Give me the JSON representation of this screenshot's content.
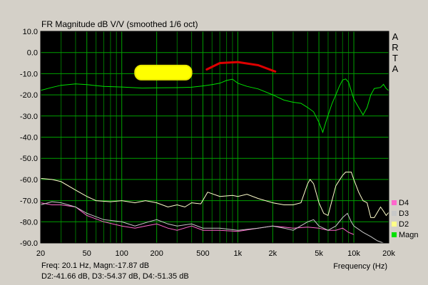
{
  "chart_data": {
    "type": "line",
    "title": "FR Magnitude dB V/V (smoothed 1/6 oct)",
    "xlabel": "Frequency (Hz)",
    "ylabel": "",
    "xscale": "log",
    "xlim": [
      20,
      20000
    ],
    "ylim": [
      -90,
      10
    ],
    "x_ticks": [
      {
        "value": 20,
        "label": "20"
      },
      {
        "value": 50,
        "label": "50"
      },
      {
        "value": 100,
        "label": "100"
      },
      {
        "value": 200,
        "label": "200"
      },
      {
        "value": 500,
        "label": "500"
      },
      {
        "value": 1000,
        "label": "1k"
      },
      {
        "value": 2000,
        "label": "2k"
      },
      {
        "value": 5000,
        "label": "5k"
      },
      {
        "value": 10000,
        "label": "10k"
      },
      {
        "value": 20000,
        "label": "20k"
      }
    ],
    "y_ticks": [
      {
        "value": 10,
        "label": "10.0"
      },
      {
        "value": 0,
        "label": "0.0"
      },
      {
        "value": -10,
        "label": "-10.0"
      },
      {
        "value": -20,
        "label": "-20.0"
      },
      {
        "value": -30,
        "label": "-30.0"
      },
      {
        "value": -40,
        "label": "-40.0"
      },
      {
        "value": -50,
        "label": "-50.0"
      },
      {
        "value": -60,
        "label": "-60.0"
      },
      {
        "value": -70,
        "label": "-70.0"
      },
      {
        "value": -80,
        "label": "-80.0"
      },
      {
        "value": -90,
        "label": "-90.0"
      }
    ],
    "grid": true,
    "legend_position": "bottom-right",
    "series": [
      {
        "name": "Magn",
        "color": "#00e000",
        "points": [
          [
            20,
            -17.9
          ],
          [
            25,
            -16.5
          ],
          [
            30,
            -15.5
          ],
          [
            40,
            -14.8
          ],
          [
            50,
            -15.2
          ],
          [
            70,
            -16
          ],
          [
            100,
            -16.3
          ],
          [
            150,
            -16.8
          ],
          [
            200,
            -16.7
          ],
          [
            300,
            -16.6
          ],
          [
            400,
            -16.4
          ],
          [
            500,
            -15.8
          ],
          [
            600,
            -15.2
          ],
          [
            700,
            -14.5
          ],
          [
            800,
            -13.2
          ],
          [
            900,
            -12.6
          ],
          [
            1000,
            -14.5
          ],
          [
            1200,
            -16
          ],
          [
            1500,
            -17.2
          ],
          [
            2000,
            -20
          ],
          [
            2500,
            -22.5
          ],
          [
            3000,
            -23.5
          ],
          [
            3500,
            -24
          ],
          [
            4000,
            -26
          ],
          [
            4500,
            -28
          ],
          [
            5000,
            -33
          ],
          [
            5400,
            -37.7
          ],
          [
            5800,
            -32
          ],
          [
            6500,
            -24
          ],
          [
            7000,
            -20
          ],
          [
            7500,
            -16
          ],
          [
            8000,
            -13
          ],
          [
            8500,
            -12.5
          ],
          [
            9000,
            -14
          ],
          [
            10000,
            -22
          ],
          [
            11000,
            -26
          ],
          [
            12000,
            -29.5
          ],
          [
            13000,
            -26
          ],
          [
            14000,
            -20
          ],
          [
            15000,
            -17
          ],
          [
            17000,
            -16.5
          ],
          [
            18000,
            -15
          ],
          [
            19000,
            -17
          ],
          [
            20000,
            -18
          ]
        ]
      },
      {
        "name": "D2",
        "color": "#ffffcc",
        "points": [
          [
            20,
            -59.5
          ],
          [
            25,
            -60
          ],
          [
            30,
            -61
          ],
          [
            40,
            -65
          ],
          [
            50,
            -68
          ],
          [
            60,
            -70
          ],
          [
            80,
            -70.5
          ],
          [
            100,
            -70
          ],
          [
            130,
            -71
          ],
          [
            160,
            -70
          ],
          [
            200,
            -71
          ],
          [
            250,
            -73
          ],
          [
            300,
            -72
          ],
          [
            350,
            -73
          ],
          [
            400,
            -71
          ],
          [
            480,
            -71.5
          ],
          [
            550,
            -66
          ],
          [
            700,
            -68
          ],
          [
            900,
            -67.5
          ],
          [
            1000,
            -68
          ],
          [
            1200,
            -67
          ],
          [
            1500,
            -69
          ],
          [
            2000,
            -71
          ],
          [
            2500,
            -72
          ],
          [
            3000,
            -72
          ],
          [
            3500,
            -71
          ],
          [
            4000,
            -62
          ],
          [
            4200,
            -60
          ],
          [
            4500,
            -62
          ],
          [
            5000,
            -71
          ],
          [
            5500,
            -76
          ],
          [
            6000,
            -77
          ],
          [
            7000,
            -63
          ],
          [
            8000,
            -58
          ],
          [
            8500,
            -56.5
          ],
          [
            9500,
            -56.5
          ],
          [
            10000,
            -60
          ],
          [
            11000,
            -66
          ],
          [
            12000,
            -70
          ],
          [
            13000,
            -71
          ],
          [
            14000,
            -78
          ],
          [
            15000,
            -78
          ],
          [
            17000,
            -73
          ],
          [
            18000,
            -75
          ],
          [
            19000,
            -77
          ],
          [
            20000,
            -75.5
          ]
        ]
      },
      {
        "name": "D3",
        "color": "#c8c8c8",
        "points": [
          [
            20,
            -72
          ],
          [
            25,
            -70.5
          ],
          [
            30,
            -71
          ],
          [
            40,
            -73
          ],
          [
            50,
            -76
          ],
          [
            70,
            -79
          ],
          [
            100,
            -80
          ],
          [
            130,
            -82
          ],
          [
            170,
            -80
          ],
          [
            200,
            -79
          ],
          [
            250,
            -81
          ],
          [
            300,
            -82
          ],
          [
            400,
            -81
          ],
          [
            500,
            -83
          ],
          [
            700,
            -83
          ],
          [
            1000,
            -84
          ],
          [
            1500,
            -83
          ],
          [
            2000,
            -82
          ],
          [
            2500,
            -83
          ],
          [
            3000,
            -84
          ],
          [
            4000,
            -80
          ],
          [
            4500,
            -79
          ],
          [
            5000,
            -82
          ],
          [
            6000,
            -84
          ],
          [
            7000,
            -82
          ],
          [
            8000,
            -78
          ],
          [
            8800,
            -76
          ],
          [
            9500,
            -80
          ],
          [
            10000,
            -82
          ],
          [
            12000,
            -85
          ],
          [
            14000,
            -87
          ],
          [
            16000,
            -89
          ],
          [
            18000,
            -90
          ],
          [
            20000,
            -90
          ]
        ]
      },
      {
        "name": "D4",
        "color": "#ff66cc",
        "points": [
          [
            20,
            -71
          ],
          [
            25,
            -72
          ],
          [
            30,
            -72
          ],
          [
            40,
            -73
          ],
          [
            50,
            -77
          ],
          [
            70,
            -80
          ],
          [
            100,
            -82
          ],
          [
            130,
            -83
          ],
          [
            160,
            -82
          ],
          [
            200,
            -81
          ],
          [
            250,
            -83
          ],
          [
            300,
            -84
          ],
          [
            400,
            -82
          ],
          [
            500,
            -84
          ],
          [
            700,
            -84
          ],
          [
            1000,
            -84.5
          ],
          [
            1500,
            -83
          ],
          [
            2000,
            -82
          ],
          [
            2500,
            -82.5
          ],
          [
            3000,
            -83
          ],
          [
            4000,
            -82.5
          ],
          [
            5000,
            -83
          ],
          [
            6000,
            -84
          ],
          [
            7000,
            -84
          ],
          [
            8000,
            -83
          ],
          [
            9000,
            -85
          ],
          [
            10000,
            -86
          ]
        ]
      }
    ],
    "annotations": [
      {
        "type": "yellow-blob",
        "x": [
          130,
          400
        ],
        "y": -9.5
      },
      {
        "type": "red-arc",
        "x": [
          540,
          2100
        ],
        "y_points": [
          [
            540,
            -8
          ],
          [
            700,
            -5
          ],
          [
            1000,
            -4.5
          ],
          [
            1500,
            -6
          ],
          [
            2100,
            -9
          ]
        ]
      }
    ]
  },
  "brand_letters": [
    "A",
    "R",
    "T",
    "A"
  ],
  "legend": [
    {
      "label": "D4",
      "color": "#ff66cc"
    },
    {
      "label": "D3",
      "color": "#c8c8c8"
    },
    {
      "label": "D2",
      "color": "#ffff88"
    },
    {
      "label": "Magn",
      "color": "#00e000"
    }
  ],
  "status": {
    "line1": "Freq: 20.1 Hz, Magn:-17.87 dB",
    "line2": "D2:-41.66 dB, D3:-54.37 dB, D4:-51.35 dB"
  },
  "colors": {
    "plot_bg": "#000000",
    "grid": "#00a000",
    "grid_minor": "#007000",
    "frame": "#000000"
  }
}
